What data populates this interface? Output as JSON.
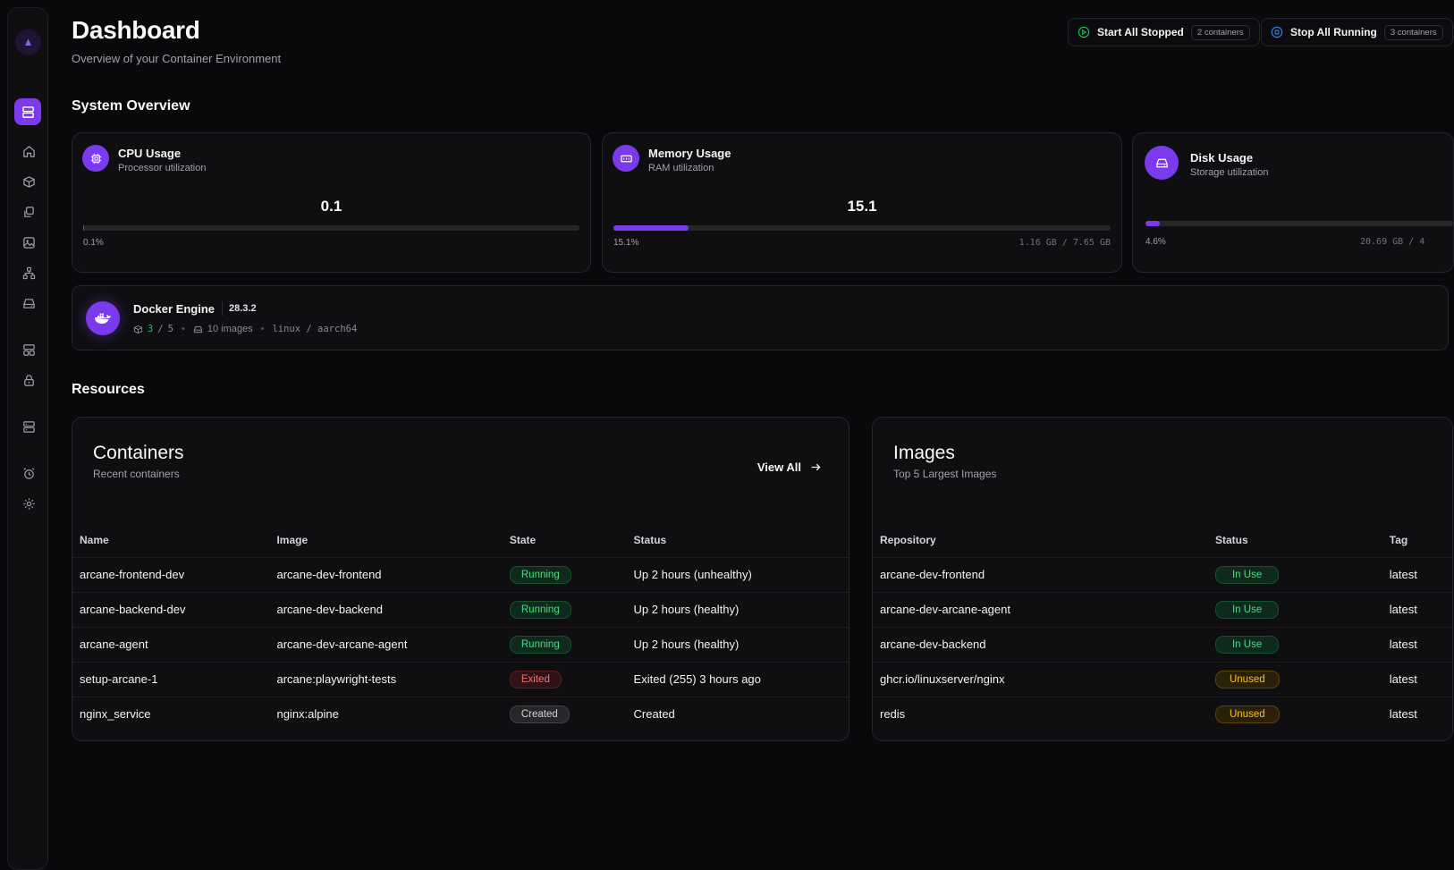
{
  "header": {
    "title": "Dashboard",
    "subtitle": "Overview of your Container Environment",
    "start_all": {
      "label": "Start All Stopped",
      "count": "2 containers"
    },
    "stop_all": {
      "label": "Stop All Running",
      "count": "3 containers"
    }
  },
  "sections": {
    "system_overview": "System Overview",
    "resources": "Resources"
  },
  "sidebar": {
    "icons": [
      "logo-icon",
      "dashboard-icon",
      "home-icon",
      "containers-icon",
      "stacks-icon",
      "images-icon",
      "networks-icon",
      "volumes-icon",
      "templates-icon",
      "registries-icon",
      "environments-icon",
      "events-icon",
      "settings-icon"
    ]
  },
  "stats": {
    "cpu": {
      "title": "CPU Usage",
      "subtitle": "Processor utilization",
      "value": "0.1",
      "percent_label": "0.1%",
      "fill_percent": 0.1,
      "detail": ""
    },
    "memory": {
      "title": "Memory Usage",
      "subtitle": "RAM utilization",
      "value": "15.1",
      "percent_label": "15.1%",
      "fill_percent": 15.1,
      "detail": "1.16 GB / 7.65 GB"
    },
    "disk": {
      "title": "Disk Usage",
      "subtitle": "Storage utilization",
      "value": "",
      "percent_label": "4.6%",
      "fill_percent": 4.6,
      "detail": "20.69 GB / 4"
    }
  },
  "docker": {
    "title": "Docker Engine",
    "version": "28.3.2",
    "running": "3",
    "separator": "/",
    "total": "5",
    "images": "10 images",
    "platform": "linux / aarch64"
  },
  "containers": {
    "title": "Containers",
    "subtitle": "Recent containers",
    "view_all": "View All",
    "columns": [
      "Name",
      "Image",
      "State",
      "Status"
    ],
    "rows": [
      {
        "name": "arcane-frontend-dev",
        "image": "arcane-dev-frontend",
        "state": "Running",
        "status": "Up 2 hours (unhealthy)"
      },
      {
        "name": "arcane-backend-dev",
        "image": "arcane-dev-backend",
        "state": "Running",
        "status": "Up 2 hours (healthy)"
      },
      {
        "name": "arcane-agent",
        "image": "arcane-dev-arcane-agent",
        "state": "Running",
        "status": "Up 2 hours (healthy)"
      },
      {
        "name": "setup-arcane-1",
        "image": "arcane:playwright-tests",
        "state": "Exited",
        "status": "Exited (255) 3 hours ago"
      },
      {
        "name": "nginx_service",
        "image": "nginx:alpine",
        "state": "Created",
        "status": "Created"
      }
    ]
  },
  "images": {
    "title": "Images",
    "subtitle": "Top 5 Largest Images",
    "columns": [
      "Repository",
      "Status",
      "Tag"
    ],
    "rows": [
      {
        "repository": "arcane-dev-frontend",
        "status": "In Use",
        "tag": "latest"
      },
      {
        "repository": "arcane-dev-arcane-agent",
        "status": "In Use",
        "tag": "latest"
      },
      {
        "repository": "arcane-dev-backend",
        "status": "In Use",
        "tag": "latest"
      },
      {
        "repository": "ghcr.io/linuxserver/nginx",
        "status": "Unused",
        "tag": "latest"
      },
      {
        "repository": "redis",
        "status": "Unused",
        "tag": "latest"
      }
    ]
  },
  "colors": {
    "accent": "#7c3aed",
    "background": "#09090b",
    "running": "#4ade80",
    "exited": "#f87171",
    "unused": "#fbbf24"
  }
}
